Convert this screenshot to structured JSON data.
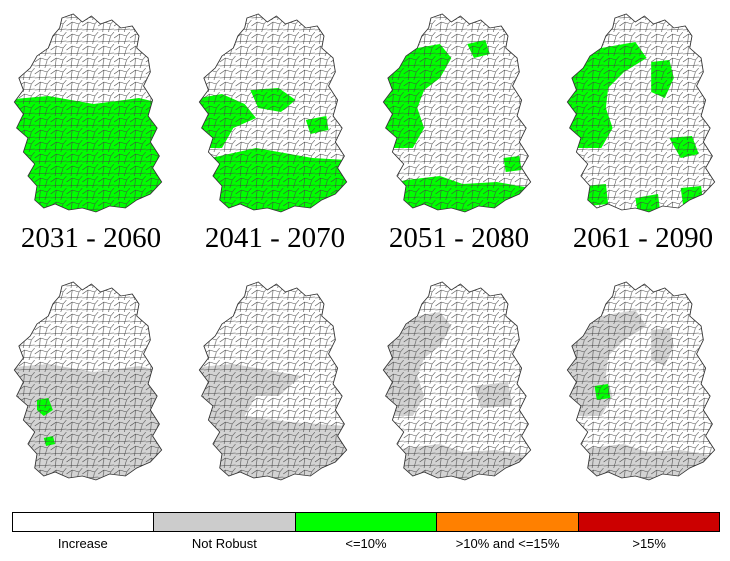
{
  "periods": [
    "2031 - 2060",
    "2041 - 2070",
    "2051 - 2080",
    "2061 - 2090"
  ],
  "legend": {
    "items": [
      {
        "label": "Increase",
        "color": "#ffffff"
      },
      {
        "label": "Not Robust",
        "color": "#cccccc"
      },
      {
        "label": "<=10%",
        "color": "#00ff00"
      },
      {
        "label": ">10% and <=15%",
        "color": "#ff8000"
      },
      {
        "label": ">15%",
        "color": "#cc0000"
      }
    ]
  },
  "colors": {
    "increase": "#ffffff",
    "not_robust": "#d3d3d3",
    "le10": "#00ff00",
    "border": "#555555"
  }
}
